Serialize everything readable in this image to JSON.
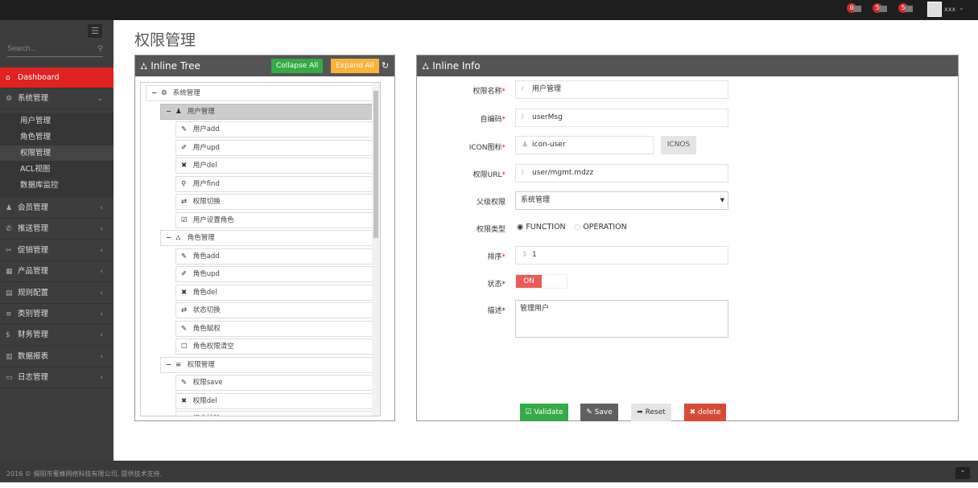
{
  "topbar": {
    "notifications": [
      {
        "count": "6",
        "icon": "warning-icon"
      },
      {
        "count": "5",
        "icon": "envelope-icon"
      },
      {
        "count": "5",
        "icon": "tasks-icon"
      }
    ],
    "user": "xxx"
  },
  "sidebar": {
    "search_placeholder": "Search...",
    "dashboard": "Dashboard",
    "system": "系统管理",
    "sub": [
      "用户管理",
      "角色管理",
      "权限管理",
      "ACL视图",
      "数据库监控"
    ],
    "items": [
      "会员管理",
      "推送管理",
      "促销管理",
      "产品管理",
      "规则配置",
      "类别管理",
      "财务管理",
      "数据报表",
      "日志管理"
    ]
  },
  "page_title": "权限管理",
  "tree_panel": {
    "title": "Inline Tree",
    "collapse": "Collapse All",
    "expand": "Expand All",
    "rows": [
      {
        "level": 0,
        "label": "系统管理",
        "icon": "cogs-icon",
        "toggle": "−"
      },
      {
        "level": 1,
        "label": "用户管理",
        "icon": "user-icon",
        "toggle": "−",
        "selected": true
      },
      {
        "level": 2,
        "label": "用户add",
        "icon": "pencil-icon"
      },
      {
        "level": 2,
        "label": "用户upd",
        "icon": "edit-icon"
      },
      {
        "level": 2,
        "label": "用户del",
        "icon": "times-icon"
      },
      {
        "level": 2,
        "label": "用户find",
        "icon": "search-icon"
      },
      {
        "level": 2,
        "label": "权限切换",
        "icon": "retweet-icon"
      },
      {
        "level": 2,
        "label": "用户设置角色",
        "icon": "check-square-icon"
      },
      {
        "level": 1,
        "label": "角色管理",
        "icon": "sitemap-icon",
        "toggle": "−"
      },
      {
        "level": 2,
        "label": "角色add",
        "icon": "pencil-icon"
      },
      {
        "level": 2,
        "label": "角色upd",
        "icon": "edit-icon"
      },
      {
        "level": 2,
        "label": "角色del",
        "icon": "times-icon"
      },
      {
        "level": 2,
        "label": "状态切换",
        "icon": "retweet-icon"
      },
      {
        "level": 2,
        "label": "角色赋权",
        "icon": "pencil-icon"
      },
      {
        "level": 2,
        "label": "角色权限清空",
        "icon": "square-icon"
      },
      {
        "level": 1,
        "label": "权限管理",
        "icon": "list-icon",
        "toggle": "−"
      },
      {
        "level": 2,
        "label": "权限save",
        "icon": "pencil-icon"
      },
      {
        "level": 2,
        "label": "权限del",
        "icon": "times-icon"
      },
      {
        "level": 2,
        "label": "提交校验",
        "icon": "edit-icon"
      }
    ]
  },
  "info_panel": {
    "title": "Inline Info",
    "name_label": "权限名称",
    "name": "用户管理",
    "code_label": "自编码",
    "code": "userMsg",
    "icon_label": "ICON图标",
    "icon_value": "icon-user",
    "icons_btn": "ICNOS",
    "url_label": "权限URL",
    "url": "user/mgmt.mdzz",
    "parent_label": "父级权限",
    "parent": "系统管理",
    "type_label": "权限类型",
    "type_options": [
      "FUNCTION",
      "OPERATION"
    ],
    "type_selected": "FUNCTION",
    "order_label": "排序",
    "order": "1",
    "status_label": "状态",
    "status": "ON",
    "desc_label": "描述",
    "desc": "管理用户",
    "buttons": {
      "validate": "Validate",
      "save": "Save",
      "reset": "Reset",
      "delete": "delete"
    }
  },
  "footer": "2016 © 揭阳市蜜蜂网络科技有限公司, 提供技术支持."
}
